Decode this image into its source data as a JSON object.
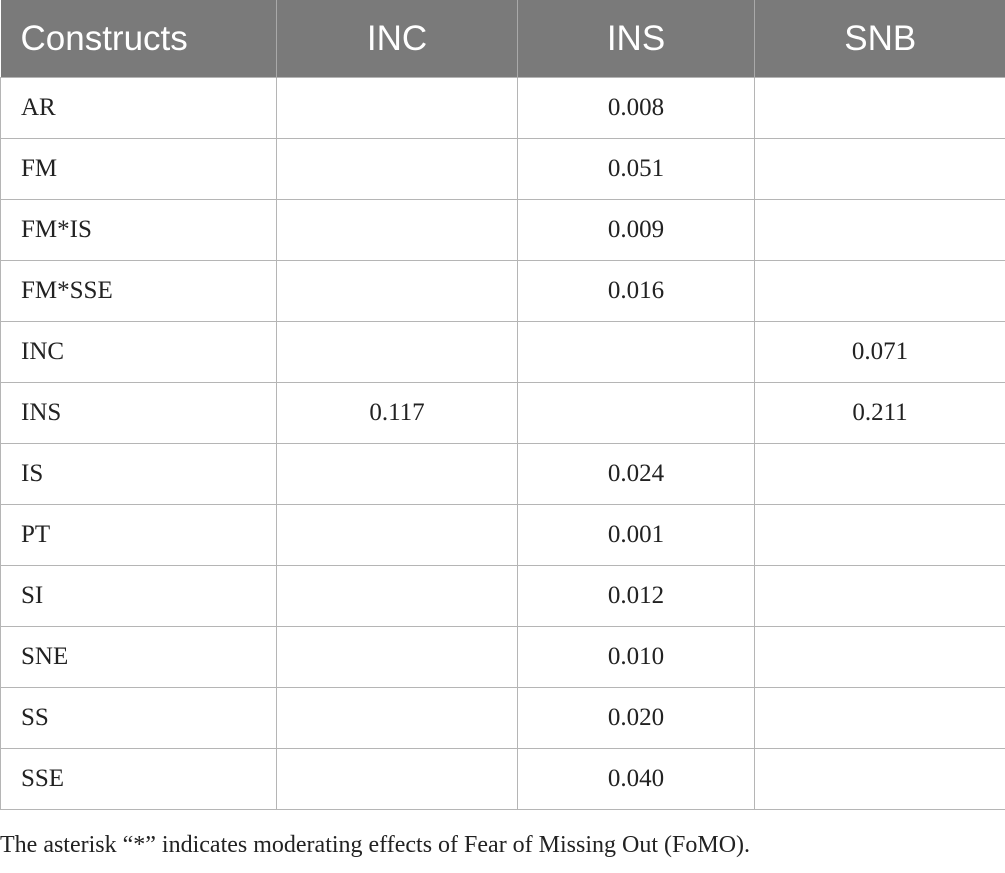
{
  "table": {
    "headers": [
      "Constructs",
      "INC",
      "INS",
      "SNB"
    ],
    "rows": [
      [
        "AR",
        "",
        "0.008",
        ""
      ],
      [
        "FM",
        "",
        "0.051",
        ""
      ],
      [
        "FM*IS",
        "",
        "0.009",
        ""
      ],
      [
        "FM*SSE",
        "",
        "0.016",
        ""
      ],
      [
        "INC",
        "",
        "",
        "0.071"
      ],
      [
        "INS",
        "0.117",
        "",
        "0.211"
      ],
      [
        "IS",
        "",
        "0.024",
        ""
      ],
      [
        "PT",
        "",
        "0.001",
        ""
      ],
      [
        "SI",
        "",
        "0.012",
        ""
      ],
      [
        "SNE",
        "",
        "0.010",
        ""
      ],
      [
        "SS",
        "",
        "0.020",
        ""
      ],
      [
        "SSE",
        "",
        "0.040",
        ""
      ]
    ]
  },
  "footnote": "The asterisk “*” indicates moderating effects of Fear of Missing Out (FoMO).",
  "colors": {
    "header_bg": "#7a7a7a",
    "header_text": "#ffffff",
    "border": "#b5b5b5"
  }
}
